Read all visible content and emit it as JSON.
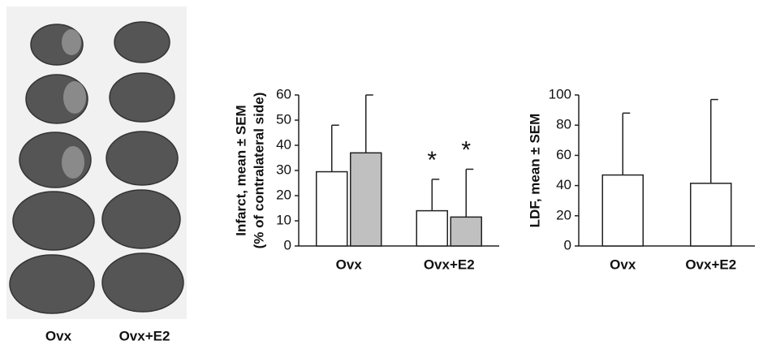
{
  "image_labels": [
    "Ovx",
    "Ovx+E2"
  ],
  "chart_data": [
    {
      "type": "bar",
      "ylabel": [
        "Infarct, mean ± SEM",
        "(% of contralateral side)"
      ],
      "categories": [
        "Ovx",
        "Ovx+E2"
      ],
      "series": [
        {
          "color": "#ffffff",
          "values": [
            29.5,
            14
          ],
          "errors": [
            18.5,
            12.5
          ],
          "annotations": [
            null,
            "*"
          ]
        },
        {
          "color": "#c0c0c0",
          "values": [
            37,
            11.5
          ],
          "errors": [
            23,
            19
          ],
          "annotations": [
            null,
            "*"
          ]
        }
      ],
      "ylim": [
        0,
        60
      ],
      "yticks": [
        0,
        10,
        20,
        30,
        40,
        50,
        60
      ]
    },
    {
      "type": "bar",
      "ylabel": [
        "LDF, mean ± SEM"
      ],
      "categories": [
        "Ovx",
        "Ovx+E2"
      ],
      "series": [
        {
          "color": "#ffffff",
          "values": [
            47,
            41.5
          ],
          "errors": [
            41,
            55.5
          ]
        }
      ],
      "ylim": [
        0,
        100
      ],
      "yticks": [
        0,
        20,
        40,
        60,
        80,
        100
      ]
    }
  ]
}
